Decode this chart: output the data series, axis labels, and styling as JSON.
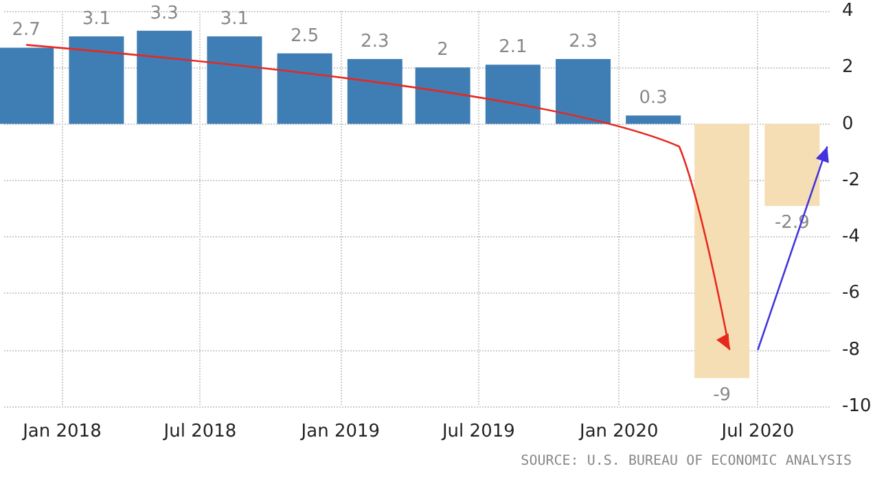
{
  "chart_data": {
    "type": "bar",
    "x": [
      "2017-11-15",
      "2018-02-15",
      "2018-05-15",
      "2018-08-15",
      "2018-11-15",
      "2019-02-15",
      "2019-05-15",
      "2019-08-15",
      "2019-11-15",
      "2020-02-15",
      "2020-05-15",
      "2020-08-15"
    ],
    "values": [
      2.7,
      3.1,
      3.3,
      3.1,
      2.5,
      2.3,
      2,
      2.1,
      2.3,
      0.3,
      -9,
      -2.9
    ],
    "colors": [
      "#3f7db5",
      "#3f7db5",
      "#3f7db5",
      "#3f7db5",
      "#3f7db5",
      "#3f7db5",
      "#3f7db5",
      "#3f7db5",
      "#3f7db5",
      "#3f7db5",
      "#f5deb3",
      "#f5deb3"
    ],
    "data_labels": true,
    "xlim": [
      "2017-10-17",
      "2020-10-05"
    ],
    "xticks": [
      {
        "value": "2018-01-01",
        "label": "Jan 2018"
      },
      {
        "value": "2018-07-01",
        "label": "Jul 2018"
      },
      {
        "value": "2019-01-01",
        "label": "Jan 2019"
      },
      {
        "value": "2019-07-01",
        "label": "Jul 2019"
      },
      {
        "value": "2020-01-01",
        "label": "Jan 2020"
      },
      {
        "value": "2020-07-01",
        "label": "Jul 2020"
      }
    ],
    "ylim": [
      -10,
      4
    ],
    "yticks": [
      -10,
      -8,
      -6,
      -4,
      -2,
      0,
      2,
      4
    ],
    "grid": true,
    "annotations": [
      "SOURCE: U.S. BUREAU OF ECONOMIC ANALYSIS"
    ]
  }
}
